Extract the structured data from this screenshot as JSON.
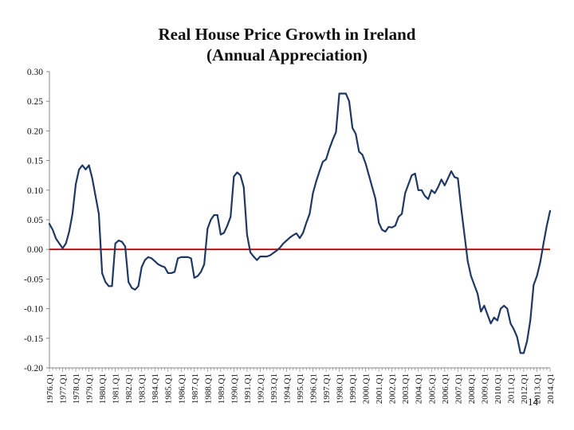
{
  "chart_data": {
    "type": "line",
    "title": "Real House Price Growth in Ireland",
    "subtitle": "(Annual Appreciation)",
    "xlabel": "",
    "ylabel": "",
    "ylim": [
      -0.2,
      0.3
    ],
    "y_ticks": [
      0.3,
      0.25,
      0.2,
      0.15,
      0.1,
      0.05,
      0.0,
      -0.05,
      -0.1,
      -0.15,
      -0.2
    ],
    "y_tick_labels": [
      "0.30",
      "0.25",
      "0.20",
      "0.15",
      "0.10",
      "0.05",
      "0.00",
      "-0.05",
      "-0.10",
      "-0.15",
      "-0.20"
    ],
    "x_range": [
      1976.0,
      2014.0
    ],
    "categories": [
      "1976.Q1",
      "1977.Q1",
      "1978.Q1",
      "1979.Q1",
      "1980.Q1",
      "1981.Q1",
      "1982.Q1",
      "1983.Q1",
      "1984.Q1",
      "1985.Q1",
      "1986.Q1",
      "1987.Q1",
      "1988.Q1",
      "1989.Q1",
      "1990.Q1",
      "1991.Q1",
      "1992.Q1",
      "1993.Q1",
      "1994.Q1",
      "1995.Q1",
      "1996.Q1",
      "1997.Q1",
      "1998.Q1",
      "1999.Q1",
      "2000.Q1",
      "2001.Q1",
      "2002.Q1",
      "2003.Q1",
      "2004.Q1",
      "2005.Q1",
      "2006.Q1",
      "2007.Q1",
      "2008.Q1",
      "2009.Q1",
      "2010.Q1",
      "2011.Q1",
      "2012.Q1",
      "2013.Q1",
      "2014.Q1"
    ],
    "series": [
      {
        "name": "Real house price growth",
        "color": "#1f3864",
        "x": [
          1976.0,
          1976.25,
          1976.5,
          1976.75,
          1977.0,
          1977.25,
          1977.5,
          1977.75,
          1978.0,
          1978.25,
          1978.5,
          1978.75,
          1979.0,
          1979.25,
          1979.5,
          1979.75,
          1980.0,
          1980.25,
          1980.5,
          1980.75,
          1981.0,
          1981.25,
          1981.5,
          1981.75,
          1982.0,
          1982.25,
          1982.5,
          1982.75,
          1983.0,
          1983.25,
          1983.5,
          1983.75,
          1984.0,
          1984.25,
          1984.5,
          1984.75,
          1985.0,
          1985.25,
          1985.5,
          1985.75,
          1986.0,
          1986.25,
          1986.5,
          1986.75,
          1987.0,
          1987.25,
          1987.5,
          1987.75,
          1988.0,
          1988.25,
          1988.5,
          1988.75,
          1989.0,
          1989.25,
          1989.5,
          1989.75,
          1990.0,
          1990.25,
          1990.5,
          1990.75,
          1991.0,
          1991.25,
          1991.5,
          1991.75,
          1992.0,
          1992.25,
          1992.5,
          1992.75,
          1993.0,
          1993.25,
          1993.5,
          1993.75,
          1994.0,
          1994.25,
          1994.5,
          1994.75,
          1995.0,
          1995.25,
          1995.5,
          1995.75,
          1996.0,
          1996.25,
          1996.5,
          1996.75,
          1997.0,
          1997.25,
          1997.5,
          1997.75,
          1998.0,
          1998.25,
          1998.5,
          1998.75,
          1999.0,
          1999.25,
          1999.5,
          1999.75,
          2000.0,
          2000.25,
          2000.5,
          2000.75,
          2001.0,
          2001.25,
          2001.5,
          2001.75,
          2002.0,
          2002.25,
          2002.5,
          2002.75,
          2003.0,
          2003.25,
          2003.5,
          2003.75,
          2004.0,
          2004.25,
          2004.5,
          2004.75,
          2005.0,
          2005.25,
          2005.5,
          2005.75,
          2006.0,
          2006.25,
          2006.5,
          2006.75,
          2007.0,
          2007.25,
          2007.5,
          2007.75,
          2008.0,
          2008.25,
          2008.5,
          2008.75,
          2009.0,
          2009.25,
          2009.5,
          2009.75,
          2010.0,
          2010.25,
          2010.5,
          2010.75,
          2011.0,
          2011.25,
          2011.5,
          2011.75,
          2012.0,
          2012.25,
          2012.5,
          2012.75,
          2013.0,
          2013.25,
          2013.5,
          2013.75,
          2014.0
        ],
        "values": [
          0.043,
          0.033,
          0.018,
          0.01,
          0.002,
          0.01,
          0.03,
          0.06,
          0.11,
          0.135,
          0.142,
          0.135,
          0.142,
          0.12,
          0.09,
          0.06,
          -0.04,
          -0.055,
          -0.062,
          -0.062,
          0.01,
          0.015,
          0.013,
          0.005,
          -0.055,
          -0.065,
          -0.068,
          -0.062,
          -0.03,
          -0.018,
          -0.013,
          -0.015,
          -0.02,
          -0.025,
          -0.028,
          -0.03,
          -0.04,
          -0.04,
          -0.038,
          -0.015,
          -0.013,
          -0.013,
          -0.013,
          -0.015,
          -0.048,
          -0.045,
          -0.038,
          -0.025,
          0.035,
          0.05,
          0.058,
          0.058,
          0.025,
          0.028,
          0.04,
          0.055,
          0.123,
          0.13,
          0.125,
          0.105,
          0.025,
          -0.005,
          -0.012,
          -0.018,
          -0.012,
          -0.012,
          -0.012,
          -0.01,
          -0.006,
          -0.002,
          0.003,
          0.01,
          0.015,
          0.02,
          0.024,
          0.027,
          0.019,
          0.028,
          0.045,
          0.06,
          0.095,
          0.115,
          0.132,
          0.148,
          0.152,
          0.17,
          0.185,
          0.198,
          0.263,
          0.263,
          0.263,
          0.25,
          0.205,
          0.195,
          0.165,
          0.16,
          0.145,
          0.125,
          0.105,
          0.085,
          0.045,
          0.033,
          0.03,
          0.038,
          0.037,
          0.04,
          0.055,
          0.06,
          0.095,
          0.11,
          0.125,
          0.128,
          0.1,
          0.1,
          0.09,
          0.085,
          0.1,
          0.095,
          0.105,
          0.118,
          0.108,
          0.12,
          0.132,
          0.122,
          0.12,
          0.07,
          0.025,
          -0.02,
          -0.045,
          -0.06,
          -0.075,
          -0.105,
          -0.095,
          -0.11,
          -0.125,
          -0.115,
          -0.12,
          -0.1,
          -0.095,
          -0.1,
          -0.125,
          -0.135,
          -0.148,
          -0.175,
          -0.175,
          -0.155,
          -0.12,
          -0.06,
          -0.045,
          -0.022,
          0.01,
          0.04,
          0.065
        ]
      }
    ],
    "zero_line": {
      "value": 0.0,
      "color": "#c00000"
    },
    "grid": false,
    "legend": "none"
  },
  "page_number": "14"
}
